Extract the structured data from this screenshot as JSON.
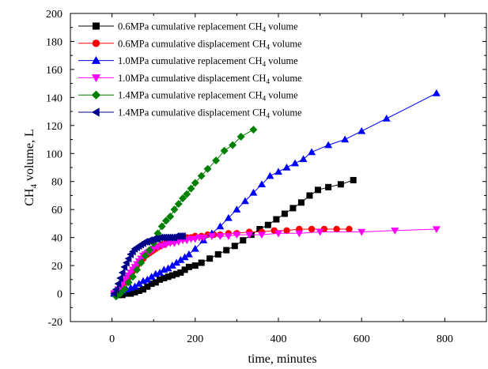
{
  "chart_data": {
    "type": "line",
    "xlabel": "time, minutes",
    "ylabel_parts": [
      "CH",
      "4",
      " volume,  L"
    ],
    "xlim": [
      -100,
      900
    ],
    "ylim": [
      -20,
      200
    ],
    "xticks": [
      0,
      200,
      400,
      600,
      800
    ],
    "yticks": [
      -20,
      0,
      20,
      40,
      60,
      80,
      100,
      120,
      140,
      160,
      180,
      200
    ],
    "x_minor_step": 100,
    "y_minor_step": 10,
    "legend_position": "top-left",
    "series": [
      {
        "legend": [
          "0.6MPa  cumulative replacement CH",
          "4",
          " volume"
        ],
        "color": "#000000",
        "marker": "square",
        "x": [
          5,
          15,
          25,
          35,
          45,
          55,
          65,
          75,
          85,
          95,
          105,
          115,
          125,
          135,
          145,
          155,
          165,
          175,
          185,
          200,
          215,
          235,
          255,
          275,
          295,
          315,
          335,
          355,
          375,
          395,
          415,
          435,
          455,
          475,
          495,
          520,
          550,
          580
        ],
        "y": [
          0,
          -1,
          -1,
          0,
          0,
          1,
          2,
          3,
          5,
          7,
          8,
          10,
          11,
          12,
          13,
          14,
          15,
          17,
          19,
          20,
          22,
          25,
          28,
          31,
          34,
          38,
          42,
          46,
          49,
          53,
          57,
          61,
          65,
          70,
          74,
          76,
          78,
          81
        ]
      },
      {
        "legend": [
          "0.6MPa  cumulative displacement CH",
          "4",
          " volume"
        ],
        "color": "#ff0000",
        "marker": "circle",
        "x": [
          5,
          10,
          15,
          20,
          25,
          30,
          35,
          40,
          45,
          50,
          55,
          60,
          65,
          70,
          75,
          80,
          85,
          90,
          95,
          100,
          105,
          110,
          115,
          120,
          125,
          130,
          135,
          140,
          145,
          150,
          160,
          170,
          180,
          190,
          200,
          215,
          230,
          245,
          260,
          280,
          300,
          330,
          360,
          390,
          420,
          450,
          480,
          510,
          540,
          570
        ],
        "y": [
          0,
          1,
          2,
          4,
          6,
          8,
          10,
          12,
          14,
          16,
          18,
          20,
          22,
          24,
          25,
          27,
          28,
          29,
          30,
          31,
          32,
          33,
          34,
          35,
          35,
          36,
          37,
          37,
          38,
          38,
          39,
          39,
          40,
          40,
          41,
          41,
          42,
          42,
          42,
          43,
          43,
          44,
          44,
          45,
          45,
          46,
          46,
          46,
          46,
          46
        ]
      },
      {
        "legend": [
          "1.0MPa  cumulative replacement CH",
          "4",
          " volume"
        ],
        "color": "#0000ff",
        "marker": "triangle-up",
        "x": [
          5,
          15,
          25,
          35,
          45,
          55,
          65,
          75,
          85,
          95,
          105,
          115,
          125,
          135,
          145,
          155,
          165,
          175,
          185,
          200,
          220,
          240,
          260,
          280,
          300,
          320,
          340,
          360,
          380,
          400,
          420,
          440,
          460,
          480,
          520,
          560,
          600,
          660,
          780
        ],
        "y": [
          0,
          1,
          2,
          3,
          4,
          5,
          7,
          9,
          10,
          12,
          14,
          15,
          17,
          18,
          20,
          22,
          24,
          26,
          28,
          32,
          38,
          43,
          48,
          54,
          60,
          66,
          72,
          78,
          84,
          87,
          90,
          93,
          96,
          101,
          106,
          110,
          116,
          125,
          143
        ]
      },
      {
        "legend": [
          "1.0MPa  cumulative displacement CH",
          "4",
          " volume"
        ],
        "color": "#ff00ff",
        "marker": "triangle-down",
        "x": [
          5,
          10,
          15,
          20,
          25,
          30,
          35,
          40,
          45,
          50,
          55,
          60,
          65,
          70,
          75,
          80,
          85,
          90,
          95,
          100,
          110,
          120,
          130,
          140,
          150,
          160,
          170,
          180,
          190,
          200,
          210,
          220,
          240,
          260,
          280,
          300,
          330,
          360,
          400,
          450,
          500,
          600,
          680,
          780
        ],
        "y": [
          0,
          1,
          3,
          5,
          7,
          9,
          11,
          13,
          15,
          17,
          19,
          21,
          23,
          25,
          27,
          28,
          29,
          30,
          31,
          32,
          33,
          34,
          35,
          36,
          36,
          37,
          38,
          38,
          39,
          39,
          40,
          40,
          41,
          41,
          41,
          42,
          42,
          42,
          43,
          43,
          44,
          44,
          45,
          46
        ]
      },
      {
        "legend": [
          "1.4MPa  cumulative replacement CH",
          "4",
          " volume"
        ],
        "color": "#008000",
        "marker": "diamond",
        "x": [
          10,
          20,
          30,
          40,
          50,
          60,
          70,
          80,
          90,
          100,
          110,
          120,
          130,
          140,
          150,
          160,
          170,
          180,
          190,
          200,
          215,
          230,
          250,
          270,
          290,
          310,
          340
        ],
        "y": [
          -2,
          0,
          3,
          8,
          12,
          17,
          22,
          27,
          31,
          36,
          43,
          48,
          52,
          55,
          60,
          64,
          68,
          71,
          75,
          79,
          84,
          89,
          95,
          102,
          106,
          112,
          117
        ]
      },
      {
        "legend": [
          "1.4MPa  cumulative displacement CH",
          "4",
          " volume"
        ],
        "color": "#00008b",
        "marker": "triangle-left",
        "x": [
          5,
          10,
          15,
          20,
          25,
          30,
          35,
          40,
          45,
          50,
          55,
          60,
          65,
          70,
          75,
          80,
          85,
          90,
          95,
          100,
          105,
          110,
          115,
          120,
          125,
          130,
          135,
          140,
          145,
          150,
          155,
          160,
          165,
          170
        ],
        "y": [
          0,
          3,
          7,
          11,
          15,
          19,
          22,
          25,
          28,
          30,
          32,
          33,
          34,
          35,
          36,
          37,
          37,
          38,
          38,
          39,
          39,
          39,
          40,
          40,
          40,
          40,
          40,
          40,
          40,
          40,
          41,
          41,
          41,
          41
        ]
      }
    ]
  }
}
